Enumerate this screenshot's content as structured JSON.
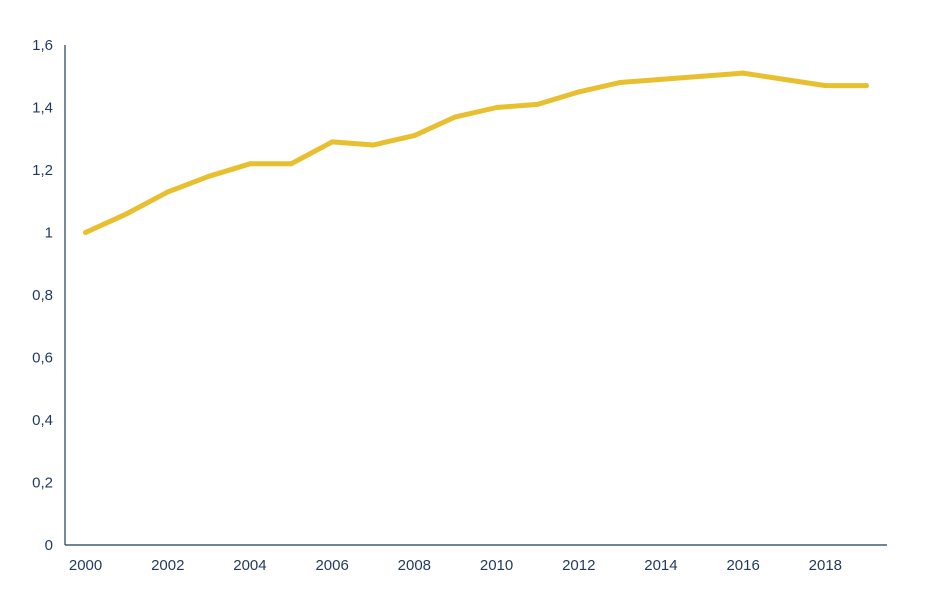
{
  "chart_data": {
    "type": "line",
    "x": [
      2000,
      2001,
      2002,
      2003,
      2004,
      2005,
      2006,
      2007,
      2008,
      2009,
      2010,
      2011,
      2012,
      2013,
      2014,
      2015,
      2016,
      2017,
      2018,
      2019
    ],
    "series": [
      {
        "values": [
          1.0,
          1.06,
          1.13,
          1.18,
          1.22,
          1.22,
          1.29,
          1.28,
          1.31,
          1.37,
          1.4,
          1.41,
          1.45,
          1.48,
          1.49,
          1.5,
          1.51,
          1.49,
          1.47,
          1.47
        ],
        "color": "#e8bf2f"
      }
    ],
    "ylim": [
      0,
      1.6
    ],
    "yticks": [
      0,
      0.2,
      0.4,
      0.6,
      0.8,
      1,
      1.2,
      1.4,
      1.6
    ],
    "ytick_labels": [
      "0",
      "0,2",
      "0,4",
      "0,6",
      "0,8",
      "1",
      "1,2",
      "1,4",
      "1,6"
    ],
    "xticks": [
      2000,
      2002,
      2004,
      2006,
      2008,
      2010,
      2012,
      2014,
      2016,
      2018
    ],
    "xtick_labels": [
      "2000",
      "2002",
      "2004",
      "2006",
      "2008",
      "2010",
      "2012",
      "2014",
      "2016",
      "2018"
    ],
    "grid": false,
    "axis_color": "#1f3a5f",
    "tick_label_color": "#1f3a5f",
    "title": "",
    "xlabel": "",
    "ylabel": ""
  }
}
